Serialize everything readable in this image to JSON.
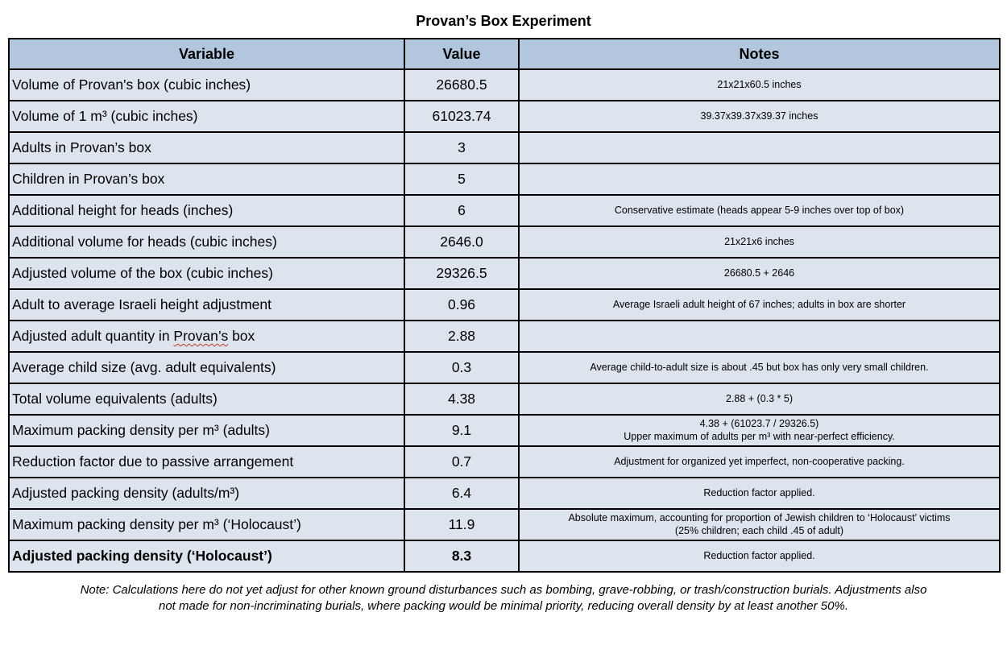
{
  "page": {
    "title": "Provan’s Box Experiment",
    "footnote": "Note: Calculations here do not yet adjust for other known ground disturbances such as bombing, grave-robbing, or trash/construction burials.  Adjustments also\nnot made for non-incriminating burials, where packing would be minimal priority, reducing overall density by at least another 50%."
  },
  "colors": {
    "header_bg": "#b2c7de",
    "row_bg": "#dde4ee",
    "border": "#000000",
    "squiggle_red": "#c0392b",
    "text": "#000000",
    "page_bg": "#ffffff"
  },
  "table": {
    "headers": [
      "Variable",
      "Value",
      "Notes"
    ],
    "rows": [
      {
        "variable": "Volume of Provan's box (cubic inches)",
        "value": "26680.5",
        "notes": "21x21x60.5 inches"
      },
      {
        "variable": "Volume of 1 m³ (cubic inches)",
        "value": "61023.74",
        "notes": "39.37x39.37x39.37 inches"
      },
      {
        "variable": "Adults in Provan’s box",
        "value": "3",
        "notes": ""
      },
      {
        "variable": "Children in Provan’s box",
        "value": "5",
        "notes": ""
      },
      {
        "variable": "Additional height for heads (inches)",
        "value": "6",
        "notes": "Conservative estimate (heads appear 5-9 inches over top of box)"
      },
      {
        "variable": "Additional volume for heads (cubic inches)",
        "value": "2646.0",
        "notes": "21x21x6 inches"
      },
      {
        "variable": "Adjusted volume of the box (cubic inches)",
        "value": "29326.5",
        "notes": "26680.5 + 2646"
      },
      {
        "variable": "Adult to average Israeli height adjustment",
        "value": "0.96",
        "notes": "Average Israeli adult height of 67 inches; adults in box are shorter"
      },
      {
        "variable": "Adjusted adult quantity in Provan’s box",
        "value": "2.88",
        "notes": "",
        "misspelled_word": "Provan’s"
      },
      {
        "variable": "Average child size (avg. adult equivalents)",
        "value": "0.3",
        "notes": "Average child-to-adult size is about .45 but box has only very small children."
      },
      {
        "variable": "Total volume equivalents (adults)",
        "value": "4.38",
        "notes": "2.88 + (0.3 * 5)"
      },
      {
        "variable": "Maximum packing density per m³ (adults)",
        "value": "9.1",
        "notes": "4.38 + (61023.7 / 29326.5)\nUpper maximum of adults per m³ with near-perfect efficiency."
      },
      {
        "variable": "Reduction factor due to passive arrangement",
        "value": "0.7",
        "notes": "Adjustment for organized yet imperfect, non-cooperative packing."
      },
      {
        "variable": "Adjusted packing density (adults/m³)",
        "value": "6.4",
        "notes": "Reduction factor applied."
      },
      {
        "variable": "Maximum packing density per m³ (‘Holocaust’)",
        "value": "11.9",
        "notes": "Absolute maximum, accounting for proportion of Jewish children to ‘Holocaust’ victims\n(25% children; each child .45 of adult)"
      },
      {
        "variable": "Adjusted packing density (‘Holocaust’)",
        "value": "8.3",
        "notes": "Reduction factor applied.",
        "bold": true
      }
    ]
  }
}
